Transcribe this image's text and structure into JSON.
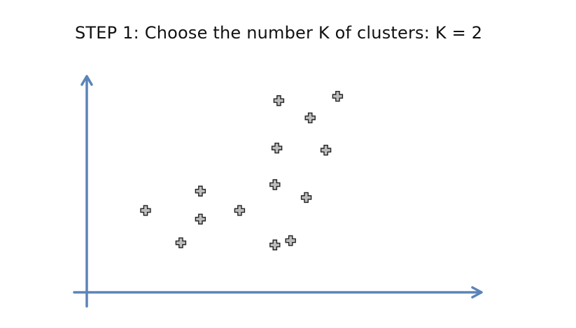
{
  "title": {
    "step": "STEP 1",
    "text": ": Choose the number K of clusters: K = 2"
  },
  "colors": {
    "axis": "#5b84b8",
    "point_fill": "#bdbdbd",
    "point_stroke": "#222222"
  },
  "chart_data": {
    "type": "scatter",
    "title": "",
    "xlabel": "",
    "ylabel": "",
    "xlim": [
      0,
      100
    ],
    "ylim": [
      0,
      100
    ],
    "grid": false,
    "axis_ticks": false,
    "marker": "plus",
    "points": [
      {
        "x": 15,
        "y": 38
      },
      {
        "x": 24,
        "y": 23
      },
      {
        "x": 29,
        "y": 47
      },
      {
        "x": 29,
        "y": 34
      },
      {
        "x": 39,
        "y": 38
      },
      {
        "x": 48,
        "y": 22
      },
      {
        "x": 48,
        "y": 50
      },
      {
        "x": 52,
        "y": 24
      },
      {
        "x": 48.5,
        "y": 67
      },
      {
        "x": 49,
        "y": 89
      },
      {
        "x": 57,
        "y": 81
      },
      {
        "x": 56,
        "y": 44
      },
      {
        "x": 61,
        "y": 66
      },
      {
        "x": 64,
        "y": 91
      }
    ]
  }
}
